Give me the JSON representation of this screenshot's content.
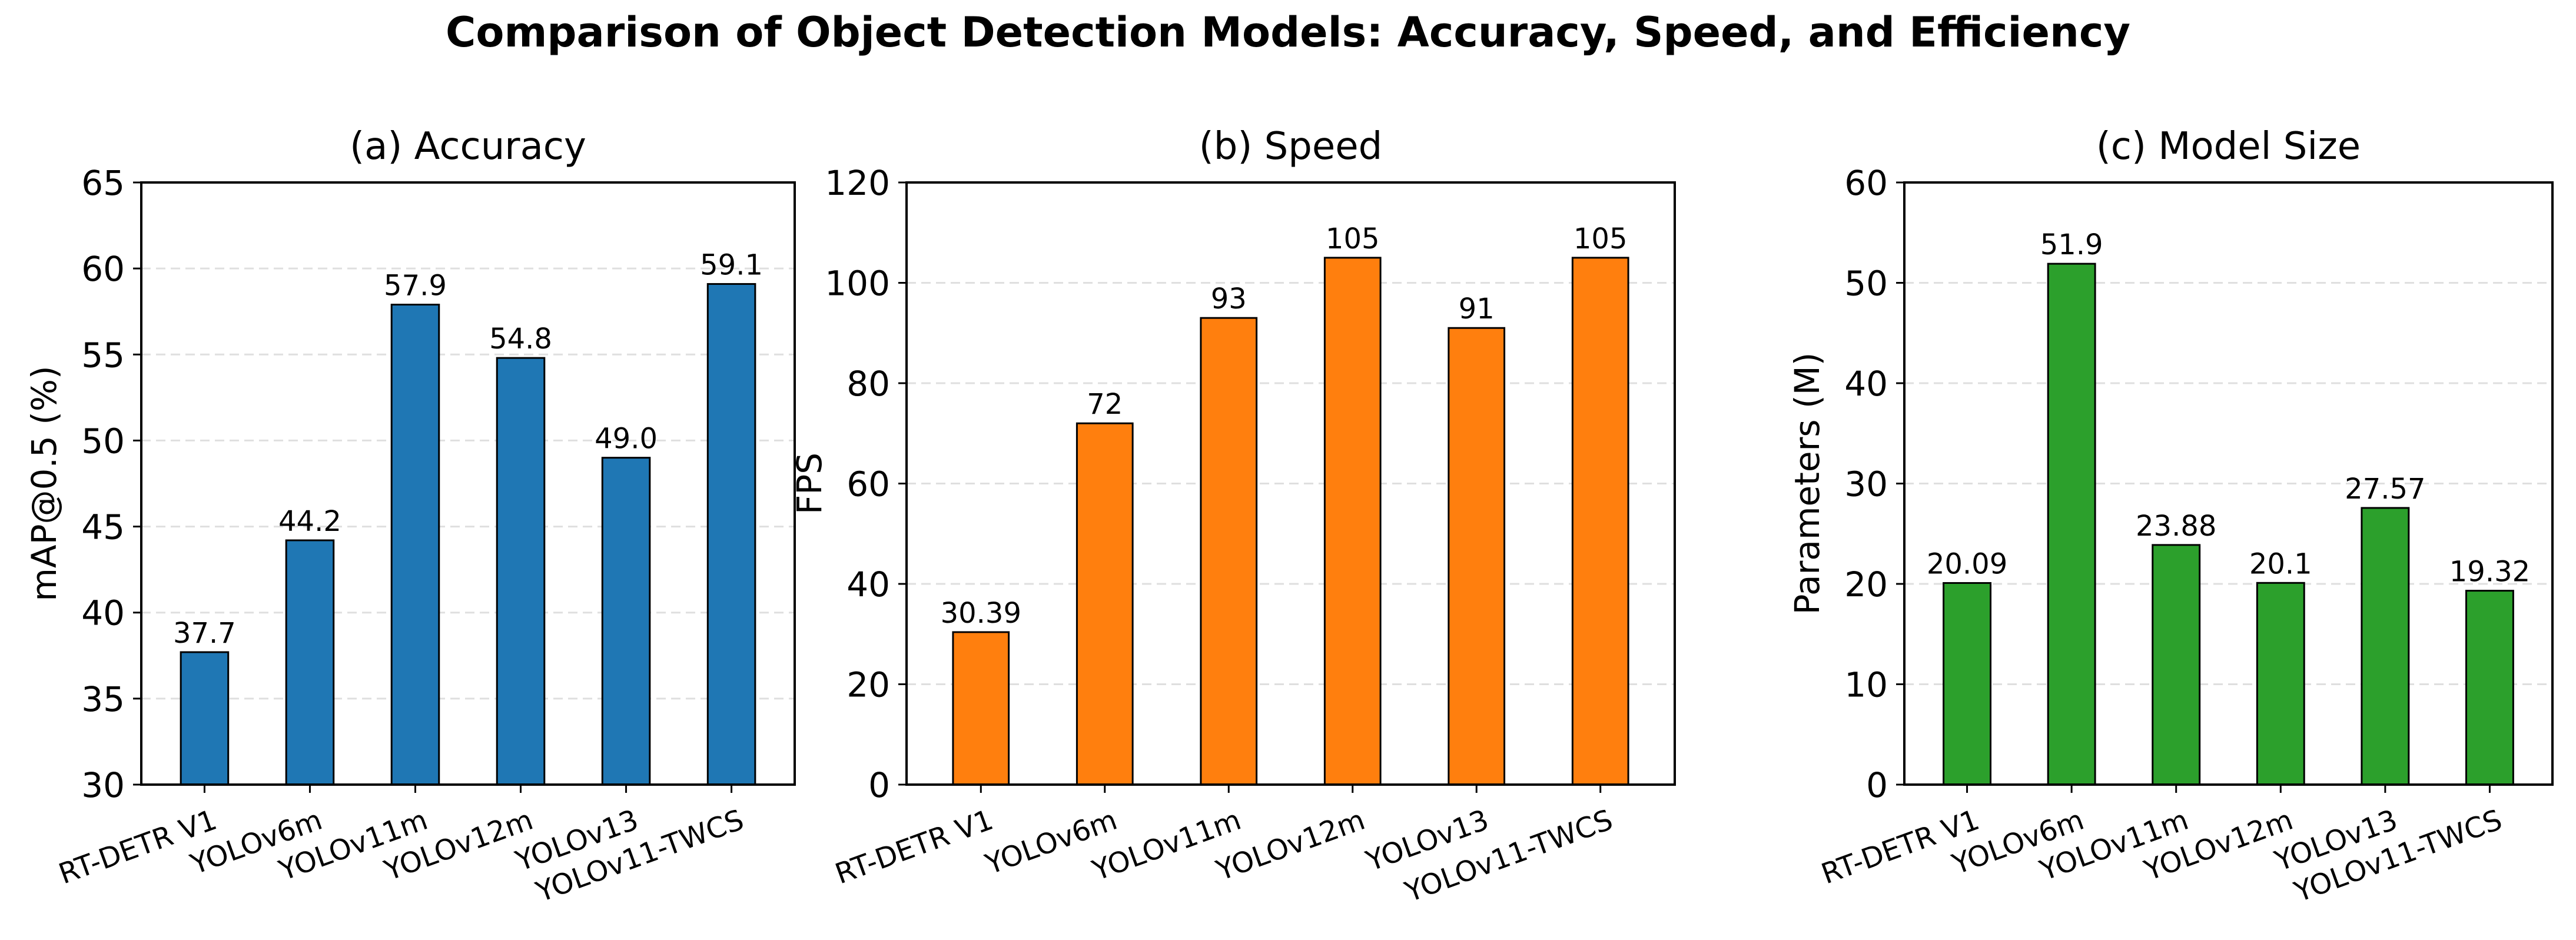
{
  "title": "Comparison of Object Detection Models: Accuracy, Speed, and Efficiency",
  "chart_data": [
    {
      "type": "bar",
      "title": "(a) Accuracy",
      "xlabel": "",
      "ylabel": "mAP@0.5 (%)",
      "ylim": [
        30,
        65
      ],
      "yticks": [
        30,
        35,
        40,
        45,
        50,
        55,
        60,
        65
      ],
      "grid": "y",
      "categories": [
        "RT-DETR V1",
        "YOLOv6m",
        "YOLOv11m",
        "YOLOv12m",
        "YOLOv13",
        "YOLOv11-TWCS"
      ],
      "values": [
        37.7,
        44.2,
        57.9,
        54.8,
        49.0,
        59.1
      ],
      "value_labels": [
        "37.7",
        "44.2",
        "57.9",
        "54.8",
        "49.0",
        "59.1"
      ],
      "color": "#1f77b4"
    },
    {
      "type": "bar",
      "title": "(b) Speed",
      "xlabel": "",
      "ylabel": "FPS",
      "ylim": [
        0,
        120
      ],
      "yticks": [
        0,
        20,
        40,
        60,
        80,
        100,
        120
      ],
      "grid": "y",
      "categories": [
        "RT-DETR V1",
        "YOLOv6m",
        "YOLOv11m",
        "YOLOv12m",
        "YOLOv13",
        "YOLOv11-TWCS"
      ],
      "values": [
        30.39,
        72,
        93,
        105,
        91,
        105
      ],
      "value_labels": [
        "30.39",
        "72",
        "93",
        "105",
        "91",
        "105"
      ],
      "color": "#ff7f0e"
    },
    {
      "type": "bar",
      "title": "(c) Model Size",
      "xlabel": "",
      "ylabel": "Parameters (M)",
      "ylim": [
        0,
        60
      ],
      "yticks": [
        0,
        10,
        20,
        30,
        40,
        50,
        60
      ],
      "grid": "y",
      "categories": [
        "RT-DETR V1",
        "YOLOv6m",
        "YOLOv11m",
        "YOLOv12m",
        "YOLOv13",
        "YOLOv11-TWCS"
      ],
      "values": [
        20.09,
        51.9,
        23.88,
        20.1,
        27.57,
        19.32
      ],
      "value_labels": [
        "20.09",
        "51.9",
        "23.88",
        "20.1",
        "27.57",
        "19.32"
      ],
      "color": "#2ca02c"
    }
  ]
}
